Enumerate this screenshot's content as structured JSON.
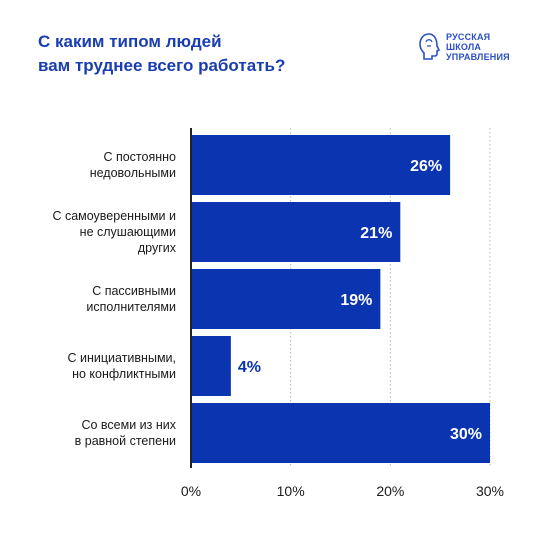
{
  "header": {
    "title_lines": [
      "С каким типом людей",
      "вам труднее всего работать?"
    ]
  },
  "logo": {
    "icon": "profile-head-icon",
    "lines": [
      "РУССКАЯ",
      "ШКОЛА",
      "УПРАВЛЕНИЯ"
    ]
  },
  "colors": {
    "bar": "#0b35b0",
    "title": "#1a3db0",
    "value_inside": "#ffffff",
    "value_outside": "#0b35b0"
  },
  "chart_data": {
    "type": "bar",
    "orientation": "horizontal",
    "title": "С каким типом людей вам труднее всего работать?",
    "categories": [
      [
        "С постоянно",
        "недовольными"
      ],
      [
        "С самоуверенными и",
        "не слушающими",
        "других"
      ],
      [
        "С пассивными",
        "исполнителями"
      ],
      [
        "С инициативными,",
        "но конфликтными"
      ],
      [
        "Со всеми из них",
        "в равной степени"
      ]
    ],
    "values": [
      26,
      21,
      19,
      4,
      30
    ],
    "value_labels": [
      "26%",
      "21%",
      "19%",
      "4%",
      "30%"
    ],
    "xlim": [
      0,
      30
    ],
    "x_ticks": [
      0,
      10,
      20,
      30
    ],
    "x_tick_labels": [
      "0%",
      "10%",
      "20%",
      "30%"
    ],
    "grid": true
  }
}
